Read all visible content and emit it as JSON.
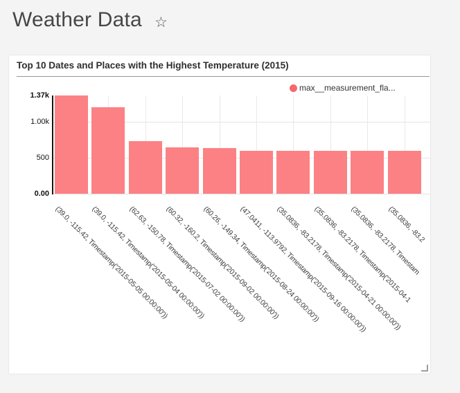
{
  "page": {
    "title": "Weather Data",
    "star_icon": "☆",
    "background_color": "#f4f4f4"
  },
  "card": {
    "title": "Top 10 Dates and Places with the Highest Temperature (2015)",
    "legend": {
      "label": "max__measurement_fla...",
      "dot_color": "#f8676d"
    }
  },
  "chart_data": {
    "type": "bar",
    "title": "Top 10 Dates and Places with the Highest Temperature (2015)",
    "series_name": "max__measurement_fla...",
    "bar_color": "#fc8184",
    "grid": true,
    "legend_position": "top-right",
    "ylim": [
      0,
      1370
    ],
    "yticks": [
      {
        "label": "0.00",
        "value": 0,
        "bold": true
      },
      {
        "label": "500",
        "value": 500,
        "bold": false
      },
      {
        "label": "1.00k",
        "value": 1000,
        "bold": false
      },
      {
        "label": "1.37k",
        "value": 1370,
        "bold": true
      }
    ],
    "categories": [
      "(39.0, -115.42, Timestamp('2015-05-05 00:00:00'))",
      "(39.0, -115.42, Timestamp('2015-05-04 00:00:00'))",
      "(62.63, -150.78, Timestamp('2015-07-02 00:00:00'))",
      "(60.32, -160.2, Timestamp('2015-09-02 00:00:00'))",
      "(60.26, -149.34, Timestamp('2015-08-24 00:00:00'))",
      "(47.0411, -113.9792, Timestamp('2015-09-16 00:00:00'))",
      "(35.0836, -83.2178, Timestamp('2015-04-21 00:00:00'))",
      "(35.0836, -83.2178, Timestamp('2015-04-1",
      "(35.0836, -83.2178, Timestam",
      "(35.0836, -83.2"
    ],
    "values": [
      1370,
      1205,
      735,
      645,
      640,
      602,
      600,
      598,
      596,
      594
    ]
  }
}
